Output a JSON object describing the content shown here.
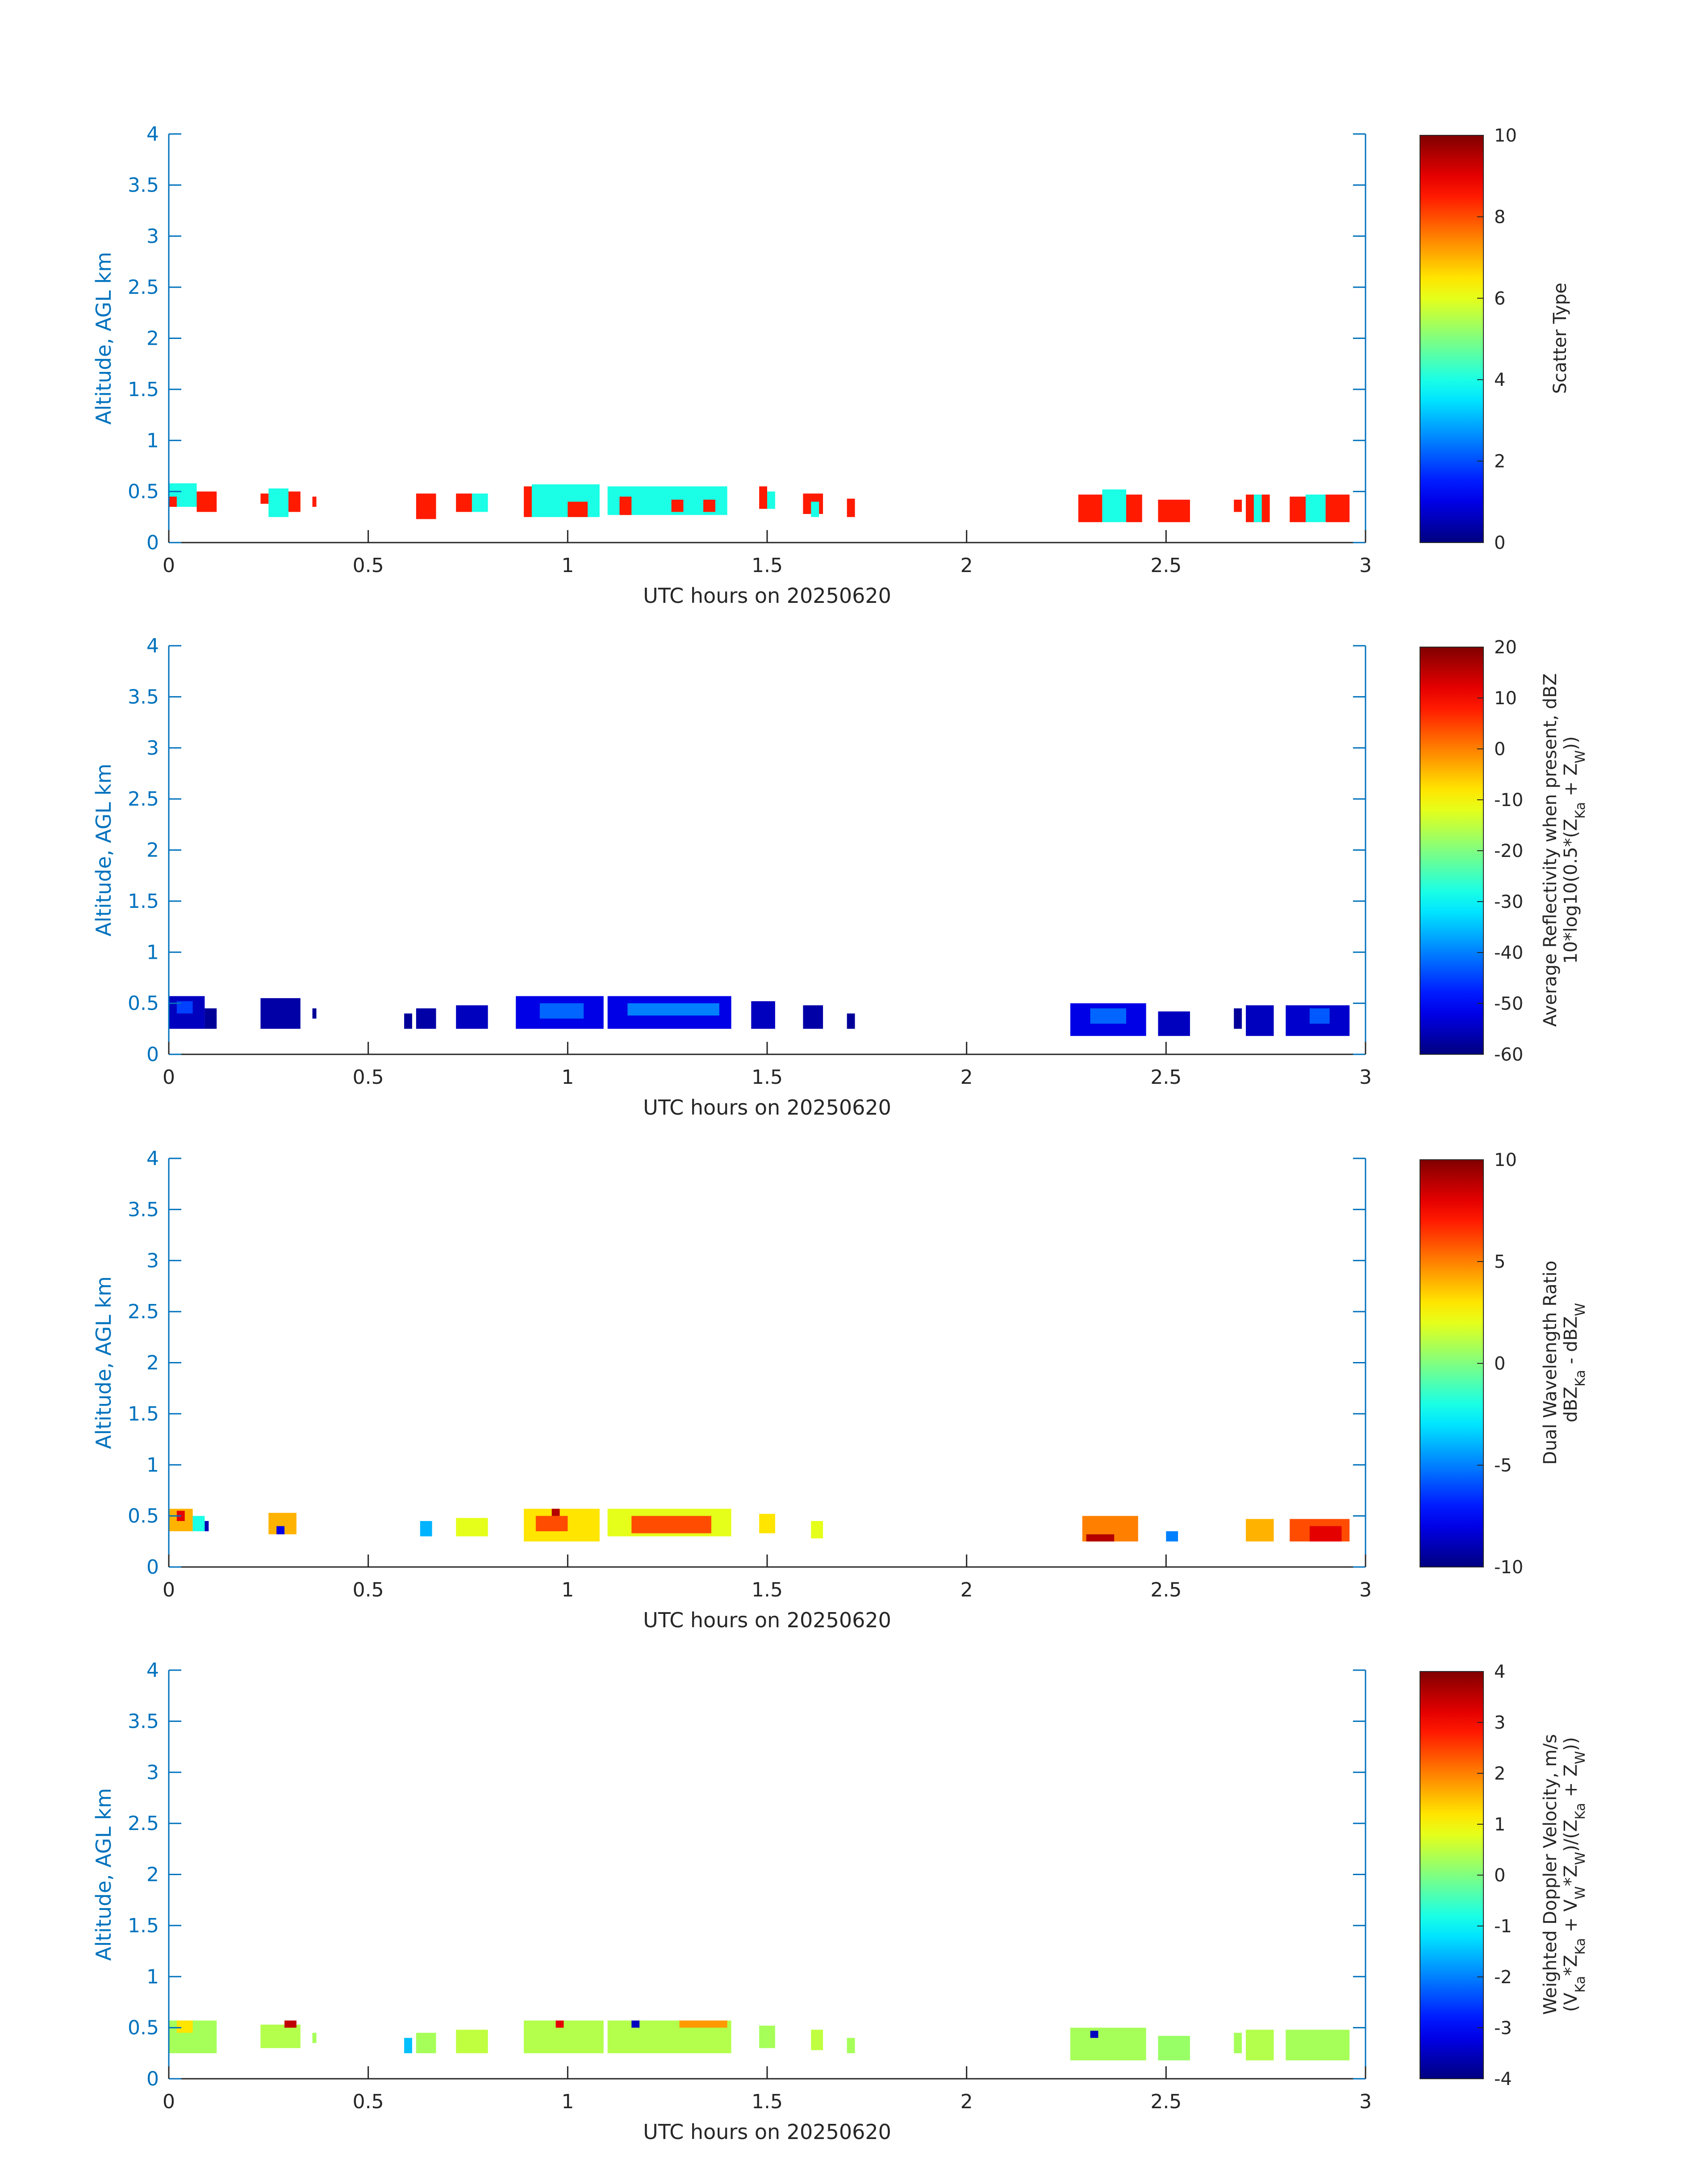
{
  "chart_data": [
    {
      "type": "heatmap",
      "xlabel": "UTC hours on 20250620",
      "ylabel": "Altitude, AGL km",
      "xlim": [
        0,
        3
      ],
      "ylim": [
        0,
        4
      ],
      "xticks": [
        0,
        0.5,
        1,
        1.5,
        2,
        2.5,
        3
      ],
      "xtick_labels": [
        "0",
        "0.5",
        "1",
        "1.5",
        "2",
        "2.5",
        "3"
      ],
      "yticks": [
        0,
        0.5,
        1,
        1.5,
        2,
        2.5,
        3,
        3.5,
        4
      ],
      "ytick_labels": [
        "0",
        "0.5",
        "1",
        "1.5",
        "2",
        "2.5",
        "3",
        "3.5",
        "4"
      ],
      "colorbar": {
        "label_lines": [
          "Scatter Type"
        ],
        "clim": [
          0,
          10
        ],
        "ticks": [
          0,
          2,
          4,
          6,
          8,
          10
        ],
        "tick_labels": [
          "0",
          "2",
          "4",
          "6",
          "8",
          "10"
        ]
      },
      "cells": [
        {
          "t0": 0.0,
          "t1": 0.07,
          "z0": 0.35,
          "z1": 0.58,
          "v": 4
        },
        {
          "t0": 0.07,
          "t1": 0.12,
          "z0": 0.3,
          "z1": 0.5,
          "v": 8.5
        },
        {
          "t0": 0.0,
          "t1": 0.02,
          "z0": 0.35,
          "z1": 0.45,
          "v": 8.5
        },
        {
          "t0": 0.23,
          "t1": 0.25,
          "z0": 0.38,
          "z1": 0.48,
          "v": 8.5
        },
        {
          "t0": 0.25,
          "t1": 0.3,
          "z0": 0.25,
          "z1": 0.53,
          "v": 4
        },
        {
          "t0": 0.3,
          "t1": 0.33,
          "z0": 0.3,
          "z1": 0.5,
          "v": 8.5
        },
        {
          "t0": 0.36,
          "t1": 0.37,
          "z0": 0.35,
          "z1": 0.45,
          "v": 8.5
        },
        {
          "t0": 0.62,
          "t1": 0.67,
          "z0": 0.23,
          "z1": 0.48,
          "v": 8.5
        },
        {
          "t0": 0.72,
          "t1": 0.76,
          "z0": 0.3,
          "z1": 0.48,
          "v": 8.5
        },
        {
          "t0": 0.76,
          "t1": 0.8,
          "z0": 0.3,
          "z1": 0.48,
          "v": 4
        },
        {
          "t0": 0.89,
          "t1": 0.91,
          "z0": 0.25,
          "z1": 0.55,
          "v": 8.5
        },
        {
          "t0": 0.91,
          "t1": 1.08,
          "z0": 0.25,
          "z1": 0.57,
          "v": 4
        },
        {
          "t0": 1.0,
          "t1": 1.05,
          "z0": 0.25,
          "z1": 0.4,
          "v": 8.5
        },
        {
          "t0": 1.1,
          "t1": 1.4,
          "z0": 0.27,
          "z1": 0.55,
          "v": 4
        },
        {
          "t0": 1.13,
          "t1": 1.16,
          "z0": 0.27,
          "z1": 0.45,
          "v": 8.5
        },
        {
          "t0": 1.26,
          "t1": 1.29,
          "z0": 0.3,
          "z1": 0.42,
          "v": 8.5
        },
        {
          "t0": 1.34,
          "t1": 1.37,
          "z0": 0.3,
          "z1": 0.42,
          "v": 8.5
        },
        {
          "t0": 1.48,
          "t1": 1.5,
          "z0": 0.33,
          "z1": 0.55,
          "v": 8.5
        },
        {
          "t0": 1.5,
          "t1": 1.52,
          "z0": 0.33,
          "z1": 0.5,
          "v": 4
        },
        {
          "t0": 1.59,
          "t1": 1.64,
          "z0": 0.28,
          "z1": 0.48,
          "v": 8.5
        },
        {
          "t0": 1.61,
          "t1": 1.63,
          "z0": 0.25,
          "z1": 0.4,
          "v": 4
        },
        {
          "t0": 1.7,
          "t1": 1.72,
          "z0": 0.25,
          "z1": 0.43,
          "v": 8.5
        },
        {
          "t0": 2.28,
          "t1": 2.34,
          "z0": 0.2,
          "z1": 0.47,
          "v": 8.5
        },
        {
          "t0": 2.34,
          "t1": 2.4,
          "z0": 0.2,
          "z1": 0.52,
          "v": 4
        },
        {
          "t0": 2.4,
          "t1": 2.44,
          "z0": 0.2,
          "z1": 0.47,
          "v": 8.5
        },
        {
          "t0": 2.48,
          "t1": 2.56,
          "z0": 0.2,
          "z1": 0.42,
          "v": 8.5
        },
        {
          "t0": 2.67,
          "t1": 2.69,
          "z0": 0.3,
          "z1": 0.42,
          "v": 8.5
        },
        {
          "t0": 2.7,
          "t1": 2.76,
          "z0": 0.2,
          "z1": 0.47,
          "v": 8.5
        },
        {
          "t0": 2.72,
          "t1": 2.74,
          "z0": 0.2,
          "z1": 0.47,
          "v": 4
        },
        {
          "t0": 2.81,
          "t1": 2.85,
          "z0": 0.2,
          "z1": 0.45,
          "v": 8.5
        },
        {
          "t0": 2.85,
          "t1": 2.9,
          "z0": 0.2,
          "z1": 0.47,
          "v": 4
        },
        {
          "t0": 2.9,
          "t1": 2.96,
          "z0": 0.2,
          "z1": 0.47,
          "v": 8.5
        }
      ]
    },
    {
      "type": "heatmap",
      "xlabel": "UTC hours on 20250620",
      "ylabel": "Altitude, AGL km",
      "xlim": [
        0,
        3
      ],
      "ylim": [
        0,
        4
      ],
      "xticks": [
        0,
        0.5,
        1,
        1.5,
        2,
        2.5,
        3
      ],
      "xtick_labels": [
        "0",
        "0.5",
        "1",
        "1.5",
        "2",
        "2.5",
        "3"
      ],
      "yticks": [
        0,
        0.5,
        1,
        1.5,
        2,
        2.5,
        3,
        3.5,
        4
      ],
      "ytick_labels": [
        "0",
        "0.5",
        "1",
        "1.5",
        "2",
        "2.5",
        "3",
        "3.5",
        "4"
      ],
      "colorbar": {
        "label_lines": [
          "Average Reflectivity when present, dBZ",
          "10*log10(0.5*(Z",
          "Ka",
          " + Z",
          "W",
          "))"
        ],
        "clim": [
          -60,
          20
        ],
        "ticks": [
          -60,
          -50,
          -40,
          -30,
          -20,
          -10,
          0,
          10,
          20
        ],
        "tick_labels": [
          "-60",
          "-50",
          "-40",
          "-30",
          "-20",
          "-10",
          "0",
          "10",
          "20"
        ]
      },
      "cells": [
        {
          "t0": 0.0,
          "t1": 0.09,
          "z0": 0.25,
          "z1": 0.57,
          "v": -55
        },
        {
          "t0": 0.02,
          "t1": 0.06,
          "z0": 0.4,
          "z1": 0.52,
          "v": -45
        },
        {
          "t0": 0.09,
          "t1": 0.12,
          "z0": 0.25,
          "z1": 0.45,
          "v": -58
        },
        {
          "t0": 0.23,
          "t1": 0.33,
          "z0": 0.25,
          "z1": 0.55,
          "v": -57
        },
        {
          "t0": 0.36,
          "t1": 0.37,
          "z0": 0.35,
          "z1": 0.45,
          "v": -58
        },
        {
          "t0": 0.59,
          "t1": 0.61,
          "z0": 0.25,
          "z1": 0.4,
          "v": -58
        },
        {
          "t0": 0.62,
          "t1": 0.67,
          "z0": 0.25,
          "z1": 0.45,
          "v": -57
        },
        {
          "t0": 0.72,
          "t1": 0.8,
          "z0": 0.25,
          "z1": 0.48,
          "v": -55
        },
        {
          "t0": 0.87,
          "t1": 1.09,
          "z0": 0.25,
          "z1": 0.57,
          "v": -52
        },
        {
          "t0": 0.93,
          "t1": 1.04,
          "z0": 0.35,
          "z1": 0.5,
          "v": -42
        },
        {
          "t0": 1.1,
          "t1": 1.41,
          "z0": 0.25,
          "z1": 0.57,
          "v": -52
        },
        {
          "t0": 1.15,
          "t1": 1.38,
          "z0": 0.38,
          "z1": 0.5,
          "v": -40
        },
        {
          "t0": 1.46,
          "t1": 1.52,
          "z0": 0.25,
          "z1": 0.52,
          "v": -55
        },
        {
          "t0": 1.59,
          "t1": 1.64,
          "z0": 0.25,
          "z1": 0.48,
          "v": -57
        },
        {
          "t0": 1.7,
          "t1": 1.72,
          "z0": 0.25,
          "z1": 0.4,
          "v": -58
        },
        {
          "t0": 2.26,
          "t1": 2.45,
          "z0": 0.18,
          "z1": 0.5,
          "v": -52
        },
        {
          "t0": 2.31,
          "t1": 2.4,
          "z0": 0.3,
          "z1": 0.45,
          "v": -42
        },
        {
          "t0": 2.48,
          "t1": 2.56,
          "z0": 0.18,
          "z1": 0.42,
          "v": -55
        },
        {
          "t0": 2.67,
          "t1": 2.69,
          "z0": 0.25,
          "z1": 0.45,
          "v": -58
        },
        {
          "t0": 2.7,
          "t1": 2.77,
          "z0": 0.18,
          "z1": 0.48,
          "v": -55
        },
        {
          "t0": 2.8,
          "t1": 2.96,
          "z0": 0.18,
          "z1": 0.48,
          "v": -54
        },
        {
          "t0": 2.86,
          "t1": 2.91,
          "z0": 0.3,
          "z1": 0.45,
          "v": -43
        }
      ]
    },
    {
      "type": "heatmap",
      "xlabel": "UTC hours on 20250620",
      "ylabel": "Altitude, AGL km",
      "xlim": [
        0,
        3
      ],
      "ylim": [
        0,
        4
      ],
      "xticks": [
        0,
        0.5,
        1,
        1.5,
        2,
        2.5,
        3
      ],
      "xtick_labels": [
        "0",
        "0.5",
        "1",
        "1.5",
        "2",
        "2.5",
        "3"
      ],
      "yticks": [
        0,
        0.5,
        1,
        1.5,
        2,
        2.5,
        3,
        3.5,
        4
      ],
      "ytick_labels": [
        "0",
        "0.5",
        "1",
        "1.5",
        "2",
        "2.5",
        "3",
        "3.5",
        "4"
      ],
      "colorbar": {
        "label_lines": [
          "Dual Wavelength Ratio",
          "dBZ",
          "Ka",
          " - dBZ",
          "W",
          ""
        ],
        "clim": [
          -10,
          10
        ],
        "ticks": [
          -10,
          -5,
          0,
          5,
          10
        ],
        "tick_labels": [
          "-10",
          "-5",
          "0",
          "5",
          "10"
        ]
      },
      "cells": [
        {
          "t0": 0.0,
          "t1": 0.06,
          "z0": 0.35,
          "z1": 0.57,
          "v": 4
        },
        {
          "t0": 0.02,
          "t1": 0.04,
          "z0": 0.45,
          "z1": 0.55,
          "v": 8
        },
        {
          "t0": 0.06,
          "t1": 0.09,
          "z0": 0.35,
          "z1": 0.5,
          "v": -2
        },
        {
          "t0": 0.09,
          "t1": 0.1,
          "z0": 0.35,
          "z1": 0.45,
          "v": -9
        },
        {
          "t0": 0.25,
          "t1": 0.32,
          "z0": 0.32,
          "z1": 0.53,
          "v": 4
        },
        {
          "t0": 0.27,
          "t1": 0.29,
          "z0": 0.32,
          "z1": 0.4,
          "v": -8
        },
        {
          "t0": 0.63,
          "t1": 0.66,
          "z0": 0.3,
          "z1": 0.45,
          "v": -4
        },
        {
          "t0": 0.72,
          "t1": 0.8,
          "z0": 0.3,
          "z1": 0.48,
          "v": 2
        },
        {
          "t0": 0.89,
          "t1": 1.08,
          "z0": 0.25,
          "z1": 0.57,
          "v": 3
        },
        {
          "t0": 0.92,
          "t1": 1.0,
          "z0": 0.35,
          "z1": 0.5,
          "v": 6
        },
        {
          "t0": 0.96,
          "t1": 0.98,
          "z0": 0.5,
          "z1": 0.57,
          "v": 9
        },
        {
          "t0": 1.1,
          "t1": 1.41,
          "z0": 0.3,
          "z1": 0.57,
          "v": 2
        },
        {
          "t0": 1.16,
          "t1": 1.36,
          "z0": 0.33,
          "z1": 0.5,
          "v": 6
        },
        {
          "t0": 1.48,
          "t1": 1.52,
          "z0": 0.33,
          "z1": 0.52,
          "v": 3
        },
        {
          "t0": 1.61,
          "t1": 1.64,
          "z0": 0.28,
          "z1": 0.45,
          "v": 2
        },
        {
          "t0": 2.29,
          "t1": 2.43,
          "z0": 0.25,
          "z1": 0.5,
          "v": 5
        },
        {
          "t0": 2.3,
          "t1": 2.37,
          "z0": 0.25,
          "z1": 0.32,
          "v": 9
        },
        {
          "t0": 2.5,
          "t1": 2.53,
          "z0": 0.25,
          "z1": 0.35,
          "v": -5
        },
        {
          "t0": 2.7,
          "t1": 2.77,
          "z0": 0.25,
          "z1": 0.47,
          "v": 4
        },
        {
          "t0": 2.81,
          "t1": 2.96,
          "z0": 0.25,
          "z1": 0.47,
          "v": 6
        },
        {
          "t0": 2.86,
          "t1": 2.94,
          "z0": 0.25,
          "z1": 0.4,
          "v": 8
        }
      ]
    },
    {
      "type": "heatmap",
      "xlabel": "UTC hours on 20250620",
      "ylabel": "Altitude, AGL km",
      "xlim": [
        0,
        3
      ],
      "ylim": [
        0,
        4
      ],
      "xticks": [
        0,
        0.5,
        1,
        1.5,
        2,
        2.5,
        3
      ],
      "xtick_labels": [
        "0",
        "0.5",
        "1",
        "1.5",
        "2",
        "2.5",
        "3"
      ],
      "yticks": [
        0,
        0.5,
        1,
        1.5,
        2,
        2.5,
        3,
        3.5,
        4
      ],
      "ytick_labels": [
        "0",
        "0.5",
        "1",
        "1.5",
        "2",
        "2.5",
        "3",
        "3.5",
        "4"
      ],
      "colorbar": {
        "label_lines": [
          "Weighted Doppler Velocity, m/s",
          "(V",
          "Ka",
          "*Z",
          "Ka",
          " + V",
          "W",
          "*Z",
          "W",
          ")/(Z",
          "Ka",
          " + Z",
          "W",
          "))"
        ],
        "clim": [
          -4,
          4
        ],
        "ticks": [
          -4,
          -3,
          -2,
          -1,
          0,
          1,
          2,
          3,
          4
        ],
        "tick_labels": [
          "-4",
          "-3",
          "-2",
          "-1",
          "0",
          "1",
          "2",
          "3",
          "4"
        ]
      },
      "cells": [
        {
          "t0": 0.0,
          "t1": 0.12,
          "z0": 0.25,
          "z1": 0.57,
          "v": 0.3
        },
        {
          "t0": 0.02,
          "t1": 0.06,
          "z0": 0.45,
          "z1": 0.57,
          "v": 1.2
        },
        {
          "t0": 0.23,
          "t1": 0.33,
          "z0": 0.3,
          "z1": 0.53,
          "v": 0.4
        },
        {
          "t0": 0.29,
          "t1": 0.32,
          "z0": 0.5,
          "z1": 0.57,
          "v": 3.5
        },
        {
          "t0": 0.36,
          "t1": 0.37,
          "z0": 0.35,
          "z1": 0.45,
          "v": 0.3
        },
        {
          "t0": 0.59,
          "t1": 0.61,
          "z0": 0.25,
          "z1": 0.4,
          "v": -1.5
        },
        {
          "t0": 0.62,
          "t1": 0.67,
          "z0": 0.25,
          "z1": 0.45,
          "v": 0.3
        },
        {
          "t0": 0.72,
          "t1": 0.8,
          "z0": 0.25,
          "z1": 0.48,
          "v": 0.5
        },
        {
          "t0": 0.89,
          "t1": 1.09,
          "z0": 0.25,
          "z1": 0.57,
          "v": 0.4
        },
        {
          "t0": 0.97,
          "t1": 0.99,
          "z0": 0.5,
          "z1": 0.57,
          "v": 3.2
        },
        {
          "t0": 1.1,
          "t1": 1.41,
          "z0": 0.25,
          "z1": 0.57,
          "v": 0.4
        },
        {
          "t0": 1.16,
          "t1": 1.18,
          "z0": 0.5,
          "z1": 0.57,
          "v": -3.5
        },
        {
          "t0": 1.28,
          "t1": 1.4,
          "z0": 0.5,
          "z1": 0.57,
          "v": 1.8
        },
        {
          "t0": 1.48,
          "t1": 1.52,
          "z0": 0.3,
          "z1": 0.52,
          "v": 0.3
        },
        {
          "t0": 1.61,
          "t1": 1.64,
          "z0": 0.28,
          "z1": 0.48,
          "v": 0.5
        },
        {
          "t0": 1.7,
          "t1": 1.72,
          "z0": 0.25,
          "z1": 0.4,
          "v": 0.3
        },
        {
          "t0": 2.26,
          "t1": 2.45,
          "z0": 0.18,
          "z1": 0.5,
          "v": 0.3
        },
        {
          "t0": 2.31,
          "t1": 2.33,
          "z0": 0.4,
          "z1": 0.47,
          "v": -3.5
        },
        {
          "t0": 2.48,
          "t1": 2.56,
          "z0": 0.18,
          "z1": 0.42,
          "v": 0.2
        },
        {
          "t0": 2.67,
          "t1": 2.69,
          "z0": 0.25,
          "z1": 0.45,
          "v": 0.3
        },
        {
          "t0": 2.7,
          "t1": 2.77,
          "z0": 0.18,
          "z1": 0.48,
          "v": 0.4
        },
        {
          "t0": 2.8,
          "t1": 2.96,
          "z0": 0.18,
          "z1": 0.48,
          "v": 0.3
        }
      ]
    }
  ]
}
